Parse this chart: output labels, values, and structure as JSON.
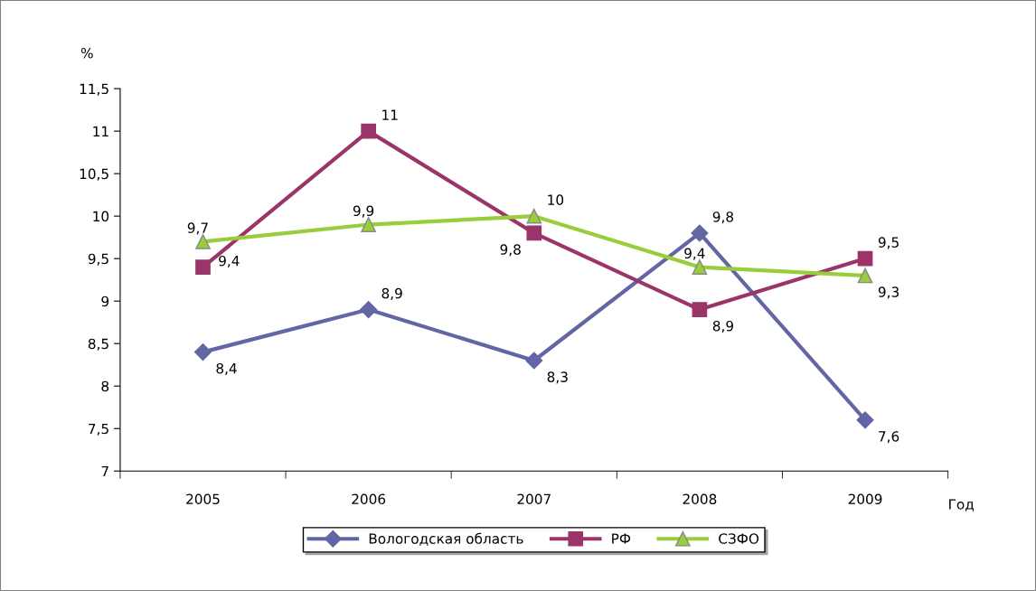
{
  "chart_data": {
    "type": "line",
    "xlabel": "Год",
    "ylabel": "%",
    "categories": [
      "2005",
      "2006",
      "2007",
      "2008",
      "2009"
    ],
    "series": [
      {
        "name": "Вологодская область",
        "color": "#6266a3",
        "marker": "diamond",
        "values": [
          8.4,
          8.9,
          8.3,
          9.8,
          7.6
        ],
        "value_labels": [
          "8,4",
          "8,9",
          "8,3",
          "9,8",
          "7,6"
        ]
      },
      {
        "name": "РФ",
        "color": "#9b3468",
        "marker": "square",
        "values": [
          9.4,
          11,
          9.8,
          8.9,
          9.5
        ],
        "value_labels": [
          "9,4",
          "11",
          "9,8",
          "8,9",
          "9,5"
        ]
      },
      {
        "name": "СЗФО",
        "color": "#9acd3c",
        "marker": "triangle",
        "values": [
          9.7,
          9.9,
          10,
          9.4,
          9.3
        ],
        "value_labels": [
          "9,7",
          "9,9",
          "10",
          "9,4",
          "9,3"
        ]
      }
    ],
    "ylim": [
      7,
      11.5
    ],
    "yticks": [
      7,
      {
        "value": 7.5,
        "label": "7,5"
      },
      8,
      {
        "value": 8.5,
        "label": "8,5"
      },
      9,
      {
        "value": 9.5,
        "label": "9,5"
      },
      10,
      {
        "value": 10.5,
        "label": "10,5"
      },
      11,
      {
        "value": 11.5,
        "label": "11,5"
      }
    ],
    "grid": false,
    "legend": "bottom",
    "line_style": "solid"
  }
}
